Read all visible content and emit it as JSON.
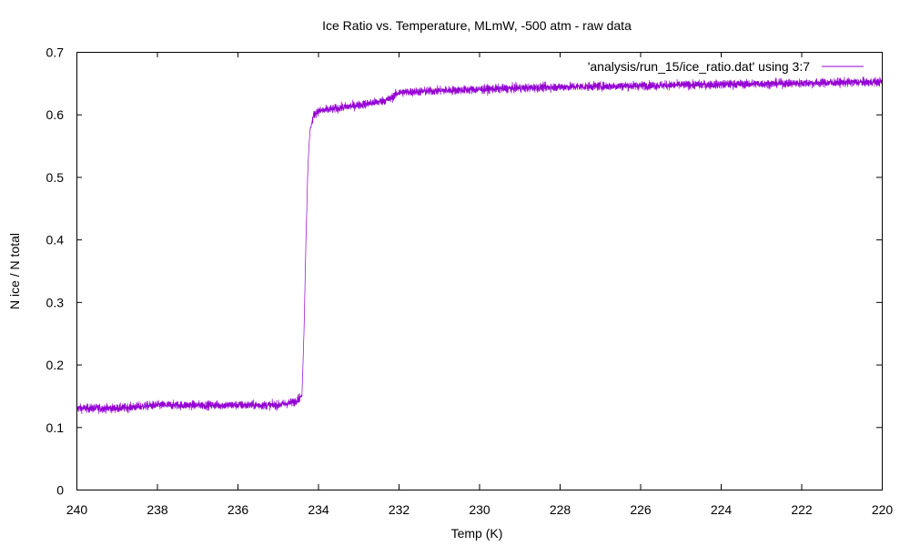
{
  "chart_data": {
    "type": "line",
    "title": "Ice Ratio vs. Temperature, MLmW, -500 atm - raw data",
    "xlabel": "Temp (K)",
    "ylabel": "N ice / N total",
    "xlim": [
      240,
      220
    ],
    "ylim": [
      0,
      0.7
    ],
    "x_reversed": true,
    "grid": false,
    "legend_position": "top-right",
    "xticks": [
      "240",
      "238",
      "236",
      "234",
      "232",
      "230",
      "228",
      "226",
      "224",
      "222",
      "220"
    ],
    "yticks": [
      "0",
      "0.1",
      "0.2",
      "0.3",
      "0.4",
      "0.5",
      "0.6",
      "0.7"
    ],
    "series": [
      {
        "name": "'analysis/run_15/ice_ratio.dat' using 3:7",
        "color": "#9400d3",
        "x": [
          240,
          239,
          238,
          237,
          236,
          235,
          234.6,
          234.4,
          234.35,
          234.3,
          234.25,
          234.2,
          234.1,
          234.0,
          233.5,
          233.0,
          232.5,
          232.2,
          232.0,
          231.0,
          230.0,
          229.0,
          228.0,
          227.0,
          226.0,
          225.0,
          224.0,
          223.0,
          222.0,
          221.0,
          220.0
        ],
        "y": [
          0.13,
          0.13,
          0.135,
          0.135,
          0.135,
          0.135,
          0.14,
          0.15,
          0.25,
          0.4,
          0.52,
          0.575,
          0.6,
          0.605,
          0.61,
          0.615,
          0.62,
          0.625,
          0.635,
          0.638,
          0.64,
          0.642,
          0.644,
          0.645,
          0.646,
          0.647,
          0.648,
          0.649,
          0.65,
          0.651,
          0.652
        ],
        "noise_amplitude": 0.012
      }
    ]
  }
}
